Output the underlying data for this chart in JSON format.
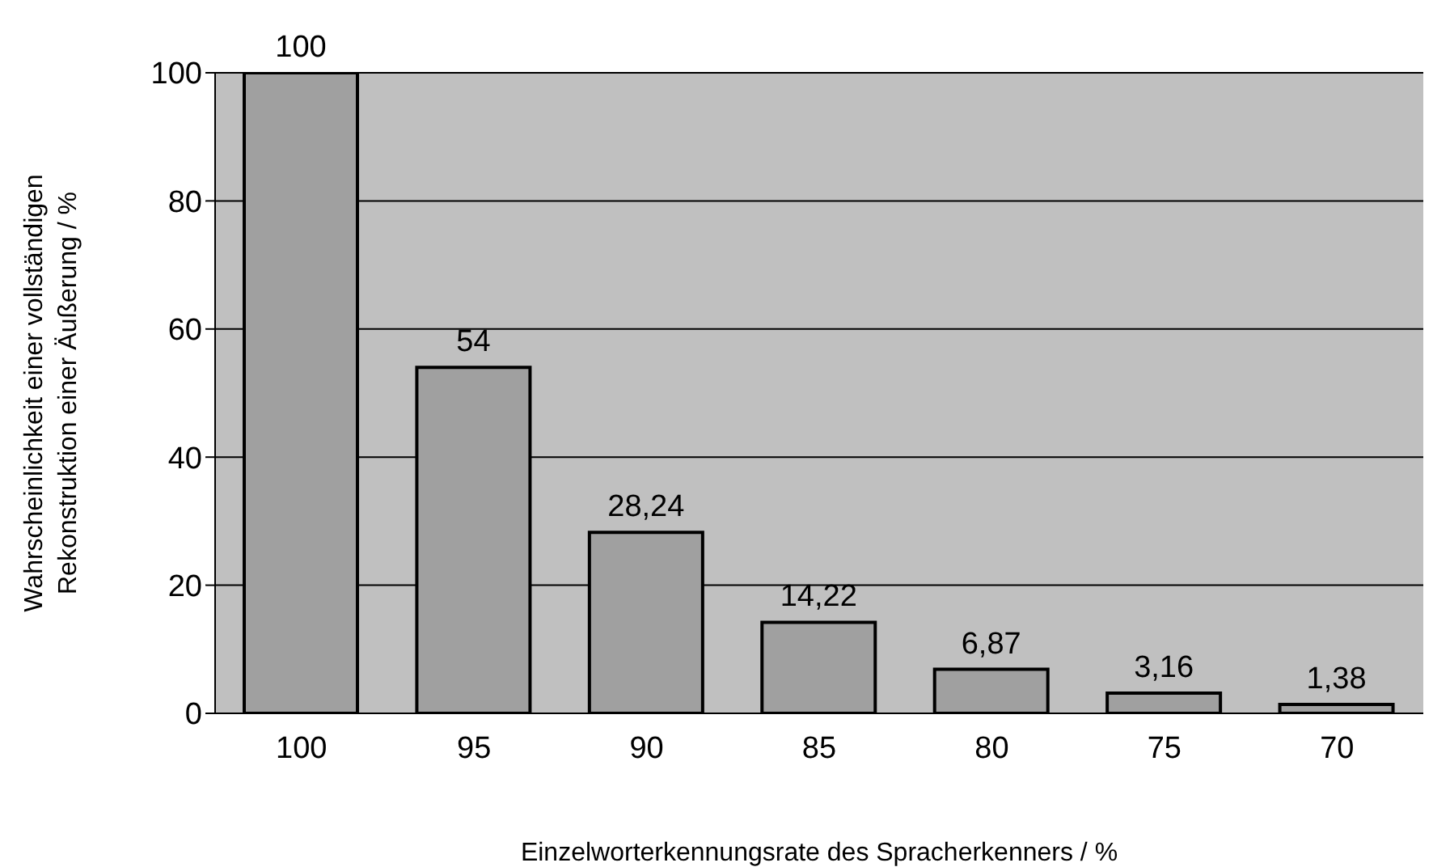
{
  "chart_data": {
    "type": "bar",
    "xlabel": "Einzelworterkennungsrate des Spracherkenners / %",
    "ylabel": "Wahrscheinlichkeit einer vollständigen Rekonstruktion einer Äußerung / %",
    "categories": [
      "100",
      "95",
      "90",
      "85",
      "80",
      "75",
      "70"
    ],
    "values": [
      100,
      54,
      28.24,
      14.22,
      6.87,
      3.16,
      1.38
    ],
    "value_labels": [
      "100",
      "54",
      "28,24",
      "14,22",
      "6,87",
      "3,16",
      "1,38"
    ],
    "color": "#a0a0a0",
    "ylim": [
      0,
      100
    ],
    "yticks": [
      0,
      20,
      40,
      60,
      80,
      100
    ],
    "grid": "y",
    "legend": false
  }
}
